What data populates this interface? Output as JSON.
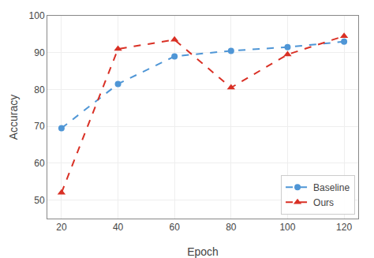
{
  "chart_data": {
    "type": "line",
    "x": [
      20,
      40,
      60,
      80,
      100,
      120
    ],
    "series": [
      {
        "name": "Baseline",
        "color": "#4F96D6",
        "values": [
          69.5,
          81.5,
          89.0,
          90.5,
          91.5,
          93.0
        ],
        "marker": "circle",
        "line_style": "dashed"
      },
      {
        "name": "Ours",
        "color": "#D93025",
        "values": [
          52.0,
          91.0,
          93.5,
          80.5,
          89.5,
          94.5
        ],
        "marker": "triangle",
        "line_style": "dashed"
      }
    ],
    "xlabel": "Epoch",
    "ylabel": "Accuracy",
    "xlim": [
      15,
      125
    ],
    "ylim": [
      45,
      100
    ],
    "xticks": [
      20,
      40,
      60,
      80,
      100,
      120
    ],
    "yticks": [
      50,
      60,
      70,
      80,
      90,
      100
    ],
    "grid": true,
    "legend": "lower right"
  }
}
